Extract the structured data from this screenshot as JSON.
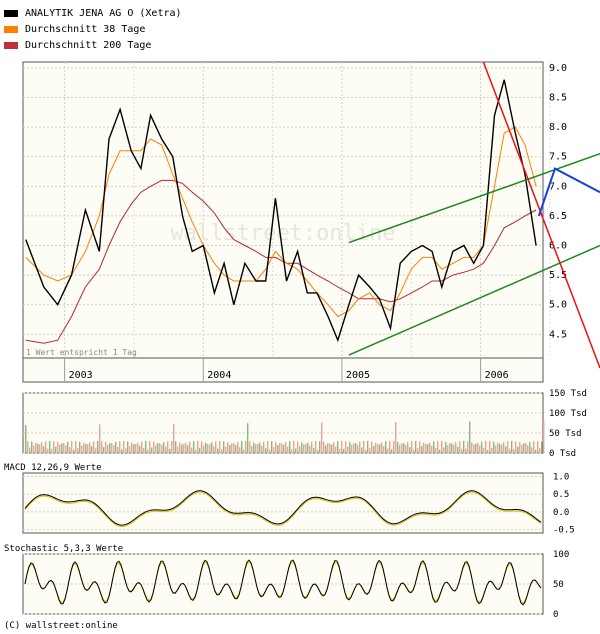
{
  "legend": [
    {
      "label": "ANALYTIK JENA AG O (Xetra)",
      "color": "#000000"
    },
    {
      "label": "Durchschnitt 38 Tage",
      "color": "#ff8000"
    },
    {
      "label": "Durchschnitt 200 Tage",
      "color": "#c0303a"
    }
  ],
  "watermark": "wallstreet:online",
  "note": "1 Wert entspricht 1 Tag",
  "footer": "(C) wallstreet:online",
  "colors": {
    "price": "#000000",
    "ma38": "#ff8000",
    "ma200": "#b52a2a",
    "trend_green": "#1e8a1e",
    "trend_red": "#ee1111",
    "trend_blue": "#1a3fd8",
    "vol_up": "#7fbf6f",
    "vol_down": "#e8a0a0",
    "stoch": "#000000",
    "panel_bg": "#fdfdf5"
  },
  "chart_data": [
    {
      "type": "line",
      "name": "price",
      "x_ticks": [
        "2003",
        "2004",
        "2005",
        "2006"
      ],
      "y_ticks": [
        4.5,
        5.0,
        5.5,
        6.0,
        6.5,
        7.0,
        7.5,
        8.0,
        8.5,
        9.0
      ],
      "ylim": [
        4.1,
        9.1
      ],
      "xlim": [
        2002.7,
        2006.45
      ],
      "x": [
        2002.72,
        2002.85,
        2002.95,
        2003.05,
        2003.15,
        2003.25,
        2003.32,
        2003.4,
        2003.48,
        2003.55,
        2003.62,
        2003.7,
        2003.78,
        2003.85,
        2003.92,
        2004.0,
        2004.08,
        2004.15,
        2004.22,
        2004.3,
        2004.38,
        2004.45,
        2004.52,
        2004.6,
        2004.68,
        2004.75,
        2004.82,
        2004.9,
        2004.97,
        2005.05,
        2005.12,
        2005.2,
        2005.27,
        2005.35,
        2005.42,
        2005.5,
        2005.58,
        2005.65,
        2005.72,
        2005.8,
        2005.88,
        2005.95,
        2006.02,
        2006.1,
        2006.17,
        2006.25,
        2006.32,
        2006.4
      ],
      "series": [
        {
          "name": "ANALYTIK JENA AG O (Xetra)",
          "values": [
            6.1,
            5.3,
            5.0,
            5.5,
            6.6,
            5.9,
            7.8,
            8.3,
            7.6,
            7.3,
            8.2,
            7.8,
            7.5,
            6.5,
            5.9,
            6.0,
            5.2,
            5.7,
            5.0,
            5.7,
            5.4,
            5.4,
            6.8,
            5.4,
            5.9,
            5.2,
            5.2,
            4.8,
            4.4,
            5.0,
            5.5,
            5.3,
            5.1,
            4.6,
            5.7,
            5.9,
            6.0,
            5.9,
            5.3,
            5.9,
            6.0,
            5.7,
            6.0,
            8.2,
            8.8,
            7.9,
            7.2,
            6.0
          ]
        },
        {
          "name": "Durchschnitt 38 Tage",
          "values": [
            5.8,
            5.5,
            5.4,
            5.5,
            5.9,
            6.5,
            7.2,
            7.6,
            7.6,
            7.6,
            7.8,
            7.7,
            7.2,
            6.8,
            6.4,
            6.0,
            5.7,
            5.5,
            5.4,
            5.4,
            5.4,
            5.6,
            5.9,
            5.7,
            5.6,
            5.4,
            5.2,
            5.0,
            4.8,
            4.9,
            5.1,
            5.2,
            5.0,
            4.9,
            5.2,
            5.6,
            5.8,
            5.8,
            5.6,
            5.7,
            5.8,
            5.8,
            6.0,
            7.0,
            7.9,
            8.0,
            7.7,
            7.0
          ]
        },
        {
          "name": "Durchschnitt 200 Tage",
          "values": [
            4.4,
            4.35,
            4.4,
            4.8,
            5.3,
            5.6,
            6.0,
            6.4,
            6.7,
            6.9,
            7.0,
            7.1,
            7.1,
            7.05,
            6.9,
            6.75,
            6.55,
            6.3,
            6.1,
            6.0,
            5.9,
            5.8,
            5.8,
            5.7,
            5.7,
            5.6,
            5.5,
            5.4,
            5.3,
            5.2,
            5.1,
            5.1,
            5.1,
            5.05,
            5.1,
            5.2,
            5.3,
            5.4,
            5.4,
            5.5,
            5.55,
            5.6,
            5.7,
            6.0,
            6.3,
            6.4,
            6.5,
            6.6
          ]
        }
      ]
    },
    {
      "type": "bar",
      "name": "volume",
      "y_ticks_label": [
        "150 Tsd",
        "100 Tsd",
        "50 Tsd",
        "0 Tsd"
      ],
      "y_ticks": [
        150,
        100,
        50,
        0
      ],
      "ylim": [
        0,
        150
      ]
    },
    {
      "type": "line",
      "name": "macd",
      "title": "MACD 12,26,9 Werte",
      "y_ticks": [
        1.0,
        0.5,
        0.0,
        -0.5
      ],
      "ylim": [
        -0.6,
        1.1
      ]
    },
    {
      "type": "line",
      "name": "stochastic",
      "title": "Stochastic 5,3,3 Werte",
      "y_ticks": [
        100,
        50,
        0
      ],
      "ylim": [
        0,
        100
      ]
    }
  ]
}
